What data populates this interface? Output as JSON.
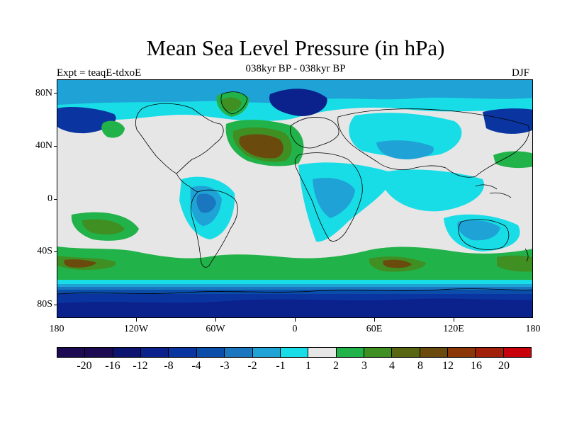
{
  "title": "Mean Sea Level Pressure (in hPa)",
  "subtitle": "038kyr BP - 038kyr BP",
  "expt_label": "Expt = teaqE-tdxoE",
  "season": "DJF",
  "lat_labels": [
    "80N",
    "40N",
    "0",
    "40S",
    "80S"
  ],
  "lon_labels": [
    "180",
    "120W",
    "60W",
    "0",
    "60E",
    "120E",
    "180"
  ],
  "colorbar": {
    "labels": [
      "-20",
      "-16",
      "-12",
      "-8",
      "-4",
      "-3",
      "-2",
      "-1",
      "1",
      "2",
      "3",
      "4",
      "8",
      "12",
      "16",
      "20"
    ],
    "colors": [
      "#1c0a52",
      "#0d1470",
      "#0b218c",
      "#0a35a0",
      "#0a4ea9",
      "#1a76bf",
      "#1fa2d6",
      "#18dde6",
      "#e6e6e6",
      "#22b24a",
      "#3f8f22",
      "#586612",
      "#6b4a0e",
      "#8c3708",
      "#a0200c",
      "#c8000c"
    ]
  },
  "map_colors": {
    "background": "#e6e6e6",
    "level_-1": "#18dde6",
    "level_-2": "#1fa2d6",
    "level_-3": "#1a76bf",
    "level_-4": "#0a4ea9",
    "level_-8": "#0a35a0",
    "level_-12": "#0b218c",
    "level_2": "#22b24a",
    "level_3": "#3f8f22",
    "level_4": "#586612",
    "level_8": "#6b4a0e",
    "coastline": "#000000"
  }
}
